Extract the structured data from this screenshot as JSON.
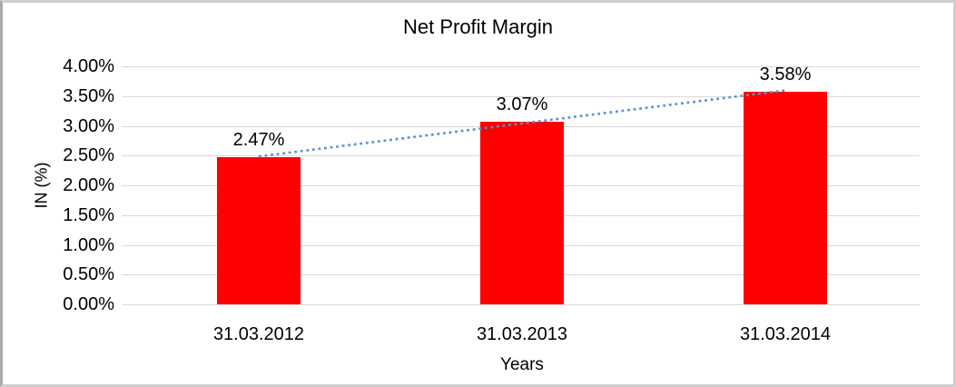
{
  "chart_data": {
    "type": "bar",
    "title": "Net Profit Margin",
    "xlabel": "Years",
    "ylabel": "IN (%)",
    "categories": [
      "31.03.2012",
      "31.03.2013",
      "31.03.2014"
    ],
    "values": [
      2.47,
      3.07,
      3.58
    ],
    "data_labels": [
      "2.47%",
      "3.07%",
      "3.58%"
    ],
    "y_ticks": [
      "4.00%",
      "3.50%",
      "3.00%",
      "2.50%",
      "2.00%",
      "1.50%",
      "1.00%",
      "0.50%",
      "0.00%"
    ],
    "ylim": [
      0,
      4
    ],
    "y_tick_step": 0.5,
    "grid": true,
    "legend_position": "none",
    "bar_color": "#ff0000",
    "trendline": {
      "type": "linear",
      "style": "dotted",
      "color": "#5c8fd2"
    },
    "gridline_color": "#d9d9d9",
    "text_color": "#000000",
    "background_color": "#ffffff",
    "frame_color": "#cfcfcf"
  }
}
